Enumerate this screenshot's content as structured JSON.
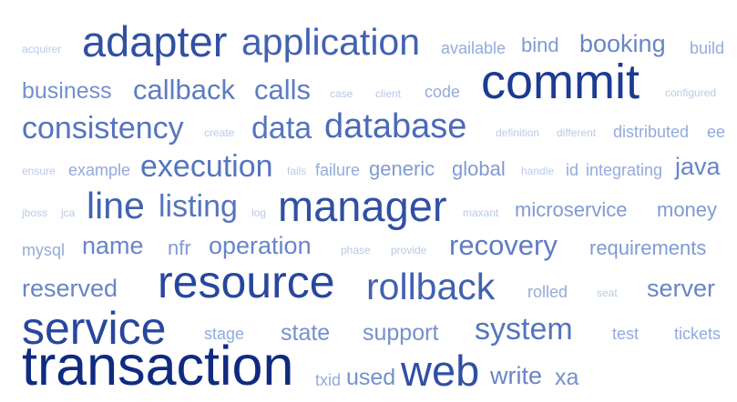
{
  "word_cloud": {
    "words": {
      "acquirer": "acquirer",
      "adapter": "adapter",
      "application": "application",
      "available": "available",
      "bind": "bind",
      "booking": "booking",
      "build": "build",
      "business": "business",
      "callback": "callback",
      "calls": "calls",
      "case": "case",
      "client": "client",
      "code": "code",
      "commit": "commit",
      "configured": "configured",
      "consistency": "consistency",
      "create": "create",
      "data": "data",
      "database": "database",
      "definition": "definition",
      "different": "different",
      "distributed": "distributed",
      "ee": "ee",
      "ensure": "ensure",
      "example": "example",
      "execution": "execution",
      "fails": "fails",
      "failure": "failure",
      "generic": "generic",
      "global": "global",
      "handle": "handle",
      "id": "id",
      "integrating": "integrating",
      "java": "java",
      "jboss": "jboss",
      "jca": "jca",
      "line": "line",
      "listing": "listing",
      "log": "log",
      "manager": "manager",
      "maxant": "maxant",
      "microservice": "microservice",
      "money": "money",
      "mysql": "mysql",
      "name": "name",
      "nfr": "nfr",
      "operation": "operation",
      "phase": "phase",
      "provide": "provide",
      "recovery": "recovery",
      "requirements": "requirements",
      "reserved": "reserved",
      "resource": "resource",
      "rollback": "rollback",
      "rolled": "rolled",
      "seat": "seat",
      "server": "server",
      "service": "service",
      "stage": "stage",
      "state": "state",
      "support": "support",
      "system": "system",
      "test": "test",
      "tickets": "tickets",
      "transaction": "transaction",
      "txid": "txid",
      "used": "used",
      "web": "web",
      "write": "write",
      "xa": "xa"
    },
    "colors": {
      "lightest": "#b9c9e8",
      "darkest": "#0f2b80"
    }
  }
}
